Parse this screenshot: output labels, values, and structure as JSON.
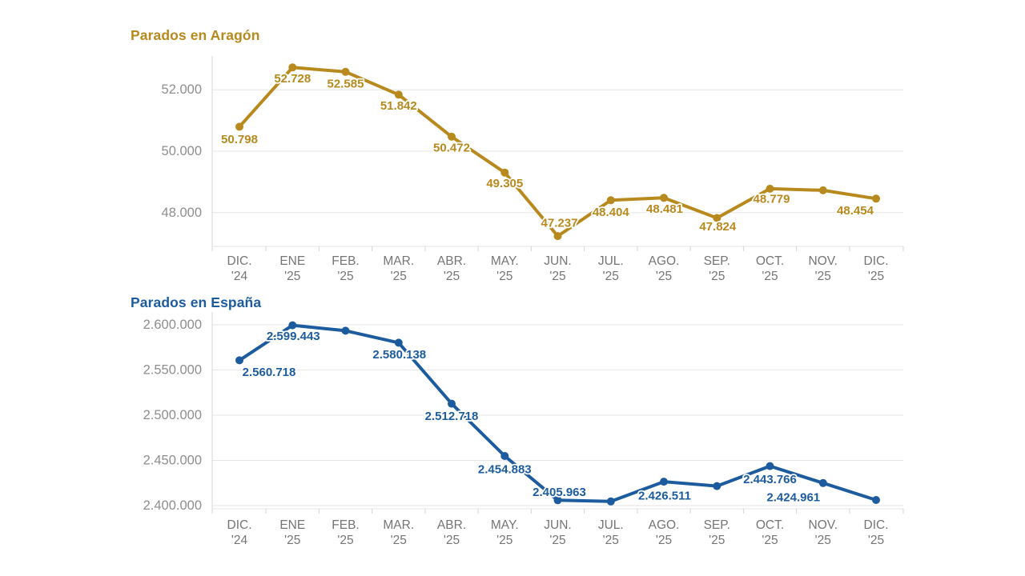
{
  "chart_data": [
    {
      "type": "line",
      "title": "Parados en Aragón",
      "accent_color": "#B8891D",
      "axis_text_color": "#8E8E8E",
      "x_text_color": "#757575",
      "categories": [
        "DIC. '24",
        "ENE '25",
        "FEB. '25",
        "MAR. '25",
        "ABR. '25",
        "MAY. '25",
        "JUN. '25",
        "JUL. '25",
        "AGO. '25",
        "SEP. '25",
        "OCT. '25",
        "NOV. '25",
        "DIC. '25"
      ],
      "values": [
        50798,
        52728,
        52585,
        51842,
        50472,
        49305,
        47237,
        48404,
        48481,
        47824,
        48779,
        48727,
        48454
      ],
      "value_labels": [
        "50.798",
        "52.728",
        "52.585",
        "51.842",
        "50.472",
        "49.305",
        "47.237",
        "48.404",
        "48.481",
        "47.824",
        "48.779",
        "",
        "48.454"
      ],
      "label_dx": [
        0,
        0,
        0,
        0,
        0,
        0,
        2,
        0,
        1,
        1,
        2,
        0,
        -26
      ],
      "label_dy": [
        16,
        14,
        15,
        14,
        14,
        14,
        -16,
        15,
        14,
        11,
        13,
        0,
        15
      ],
      "y_ticks": [
        48000,
        50000,
        52000
      ],
      "y_tick_labels": [
        "48.000",
        "50.000",
        "52.000"
      ],
      "ylim": [
        46900,
        53100
      ],
      "grid": true,
      "legend": "none"
    },
    {
      "type": "line",
      "title": "Parados en España",
      "accent_color": "#1C5C9E",
      "axis_text_color": "#8E8E8E",
      "x_text_color": "#757575",
      "categories": [
        "DIC. '24",
        "ENE '25",
        "FEB. '25",
        "MAR. '25",
        "ABR. '25",
        "MAY. '25",
        "JUN. '25",
        "JUL. '25",
        "AGO. '25",
        "SEP. '25",
        "OCT. '25",
        "NOV. '25",
        "DIC. '25"
      ],
      "values": [
        2560718,
        2599443,
        2593449,
        2580138,
        2512718,
        2454883,
        2405963,
        2404606,
        2426511,
        2421665,
        2443766,
        2424961,
        2406243
      ],
      "value_labels": [
        "2.560.718",
        "2.599.443",
        "",
        "2.580.138",
        "2.512.718",
        "2.454.883",
        "2.405.963",
        "",
        "2.426.511",
        "",
        "2.443.766",
        "2.424.961",
        ""
      ],
      "label_dx": [
        37,
        1,
        0,
        1,
        0,
        0,
        2,
        0,
        1,
        0,
        0,
        -37,
        0
      ],
      "label_dy": [
        15,
        14,
        0,
        15,
        16,
        17,
        -10,
        0,
        18,
        0,
        17,
        18,
        0
      ],
      "y_ticks": [
        2400000,
        2450000,
        2500000,
        2550000,
        2600000
      ],
      "y_tick_labels": [
        "2.400.000",
        "2.450.000",
        "2.500.000",
        "2.550.000",
        "2.600.000"
      ],
      "ylim": [
        2396500,
        2605300
      ],
      "grid": true,
      "legend": "none"
    }
  ]
}
